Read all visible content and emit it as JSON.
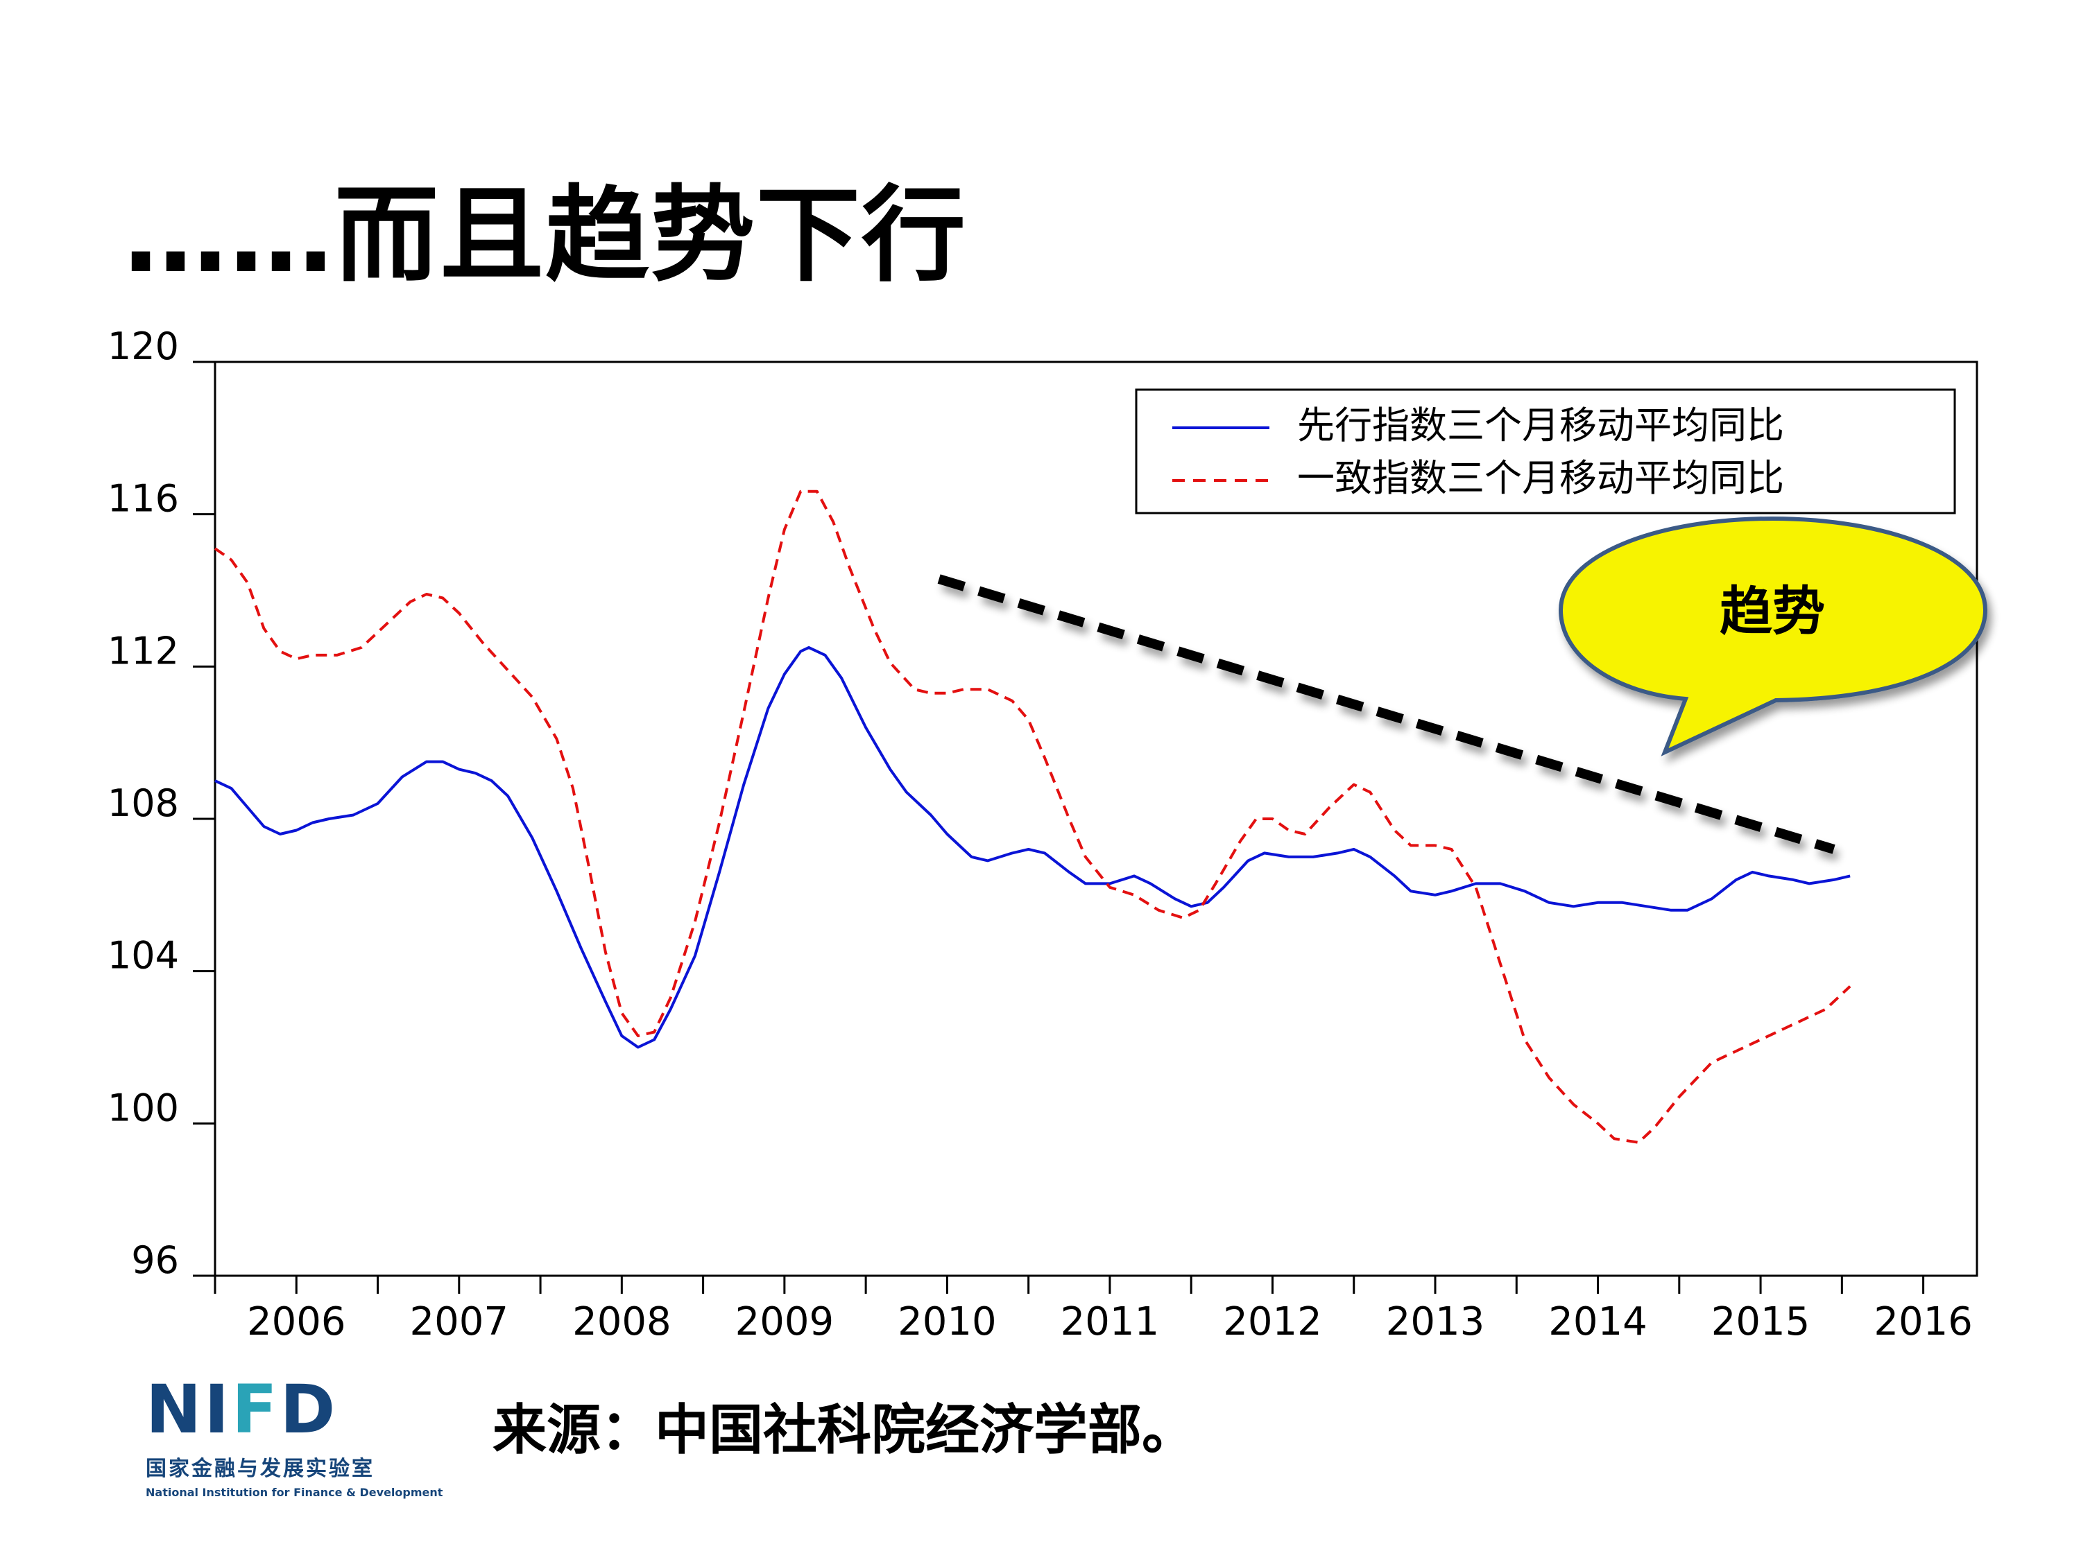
{
  "slide": {
    "title": "……而且趋势下行",
    "source": "来源：中国社科院经济学部。"
  },
  "logo": {
    "mark_left": "NI",
    "mark_accent": "F",
    "mark_right": "D",
    "name_cn": "国家金融与发展实验室",
    "name_en": "National Institution for Finance & Development"
  },
  "callout": {
    "text": "趋势",
    "fill_color": "#f7f300",
    "border_color": "#3b5a86"
  },
  "chart_data": {
    "type": "line",
    "title": "",
    "xlabel": "",
    "ylabel": "",
    "ylim": [
      96,
      120
    ],
    "yticks": [
      96,
      100,
      104,
      108,
      112,
      116,
      120
    ],
    "xlim": [
      2005.5,
      2016.33
    ],
    "xticks_labels": [
      "2006",
      "2007",
      "2008",
      "2009",
      "2010",
      "2011",
      "2012",
      "2013",
      "2014",
      "2015",
      "2016"
    ],
    "legend_position": "top-right",
    "grid": false,
    "series": [
      {
        "name": "先行指数三个月移动平均同比",
        "color": "#0a14d6",
        "style": "solid",
        "points": [
          [
            2005.5,
            109.0
          ],
          [
            2005.6,
            108.8
          ],
          [
            2005.7,
            108.3
          ],
          [
            2005.8,
            107.8
          ],
          [
            2005.9,
            107.6
          ],
          [
            2006.0,
            107.7
          ],
          [
            2006.1,
            107.9
          ],
          [
            2006.2,
            108.0
          ],
          [
            2006.35,
            108.1
          ],
          [
            2006.5,
            108.4
          ],
          [
            2006.65,
            109.1
          ],
          [
            2006.8,
            109.5
          ],
          [
            2006.9,
            109.5
          ],
          [
            2007.0,
            109.3
          ],
          [
            2007.1,
            109.2
          ],
          [
            2007.2,
            109.0
          ],
          [
            2007.3,
            108.6
          ],
          [
            2007.45,
            107.5
          ],
          [
            2007.6,
            106.1
          ],
          [
            2007.75,
            104.6
          ],
          [
            2007.9,
            103.2
          ],
          [
            2008.0,
            102.3
          ],
          [
            2008.1,
            102.0
          ],
          [
            2008.2,
            102.2
          ],
          [
            2008.3,
            103.0
          ],
          [
            2008.45,
            104.4
          ],
          [
            2008.6,
            106.6
          ],
          [
            2008.75,
            108.9
          ],
          [
            2008.9,
            110.9
          ],
          [
            2009.0,
            111.8
          ],
          [
            2009.1,
            112.4
          ],
          [
            2009.15,
            112.5
          ],
          [
            2009.25,
            112.3
          ],
          [
            2009.35,
            111.7
          ],
          [
            2009.5,
            110.4
          ],
          [
            2009.65,
            109.3
          ],
          [
            2009.75,
            108.7
          ],
          [
            2009.9,
            108.1
          ],
          [
            2010.0,
            107.6
          ],
          [
            2010.15,
            107.0
          ],
          [
            2010.25,
            106.9
          ],
          [
            2010.4,
            107.1
          ],
          [
            2010.5,
            107.2
          ],
          [
            2010.6,
            107.1
          ],
          [
            2010.75,
            106.6
          ],
          [
            2010.85,
            106.3
          ],
          [
            2011.0,
            106.3
          ],
          [
            2011.15,
            106.5
          ],
          [
            2011.25,
            106.3
          ],
          [
            2011.4,
            105.9
          ],
          [
            2011.5,
            105.7
          ],
          [
            2011.6,
            105.8
          ],
          [
            2011.7,
            106.2
          ],
          [
            2011.85,
            106.9
          ],
          [
            2011.95,
            107.1
          ],
          [
            2012.1,
            107.0
          ],
          [
            2012.25,
            107.0
          ],
          [
            2012.4,
            107.1
          ],
          [
            2012.5,
            107.2
          ],
          [
            2012.6,
            107.0
          ],
          [
            2012.75,
            106.5
          ],
          [
            2012.85,
            106.1
          ],
          [
            2013.0,
            106.0
          ],
          [
            2013.1,
            106.1
          ],
          [
            2013.25,
            106.3
          ],
          [
            2013.4,
            106.3
          ],
          [
            2013.55,
            106.1
          ],
          [
            2013.7,
            105.8
          ],
          [
            2013.85,
            105.7
          ],
          [
            2014.0,
            105.8
          ],
          [
            2014.15,
            105.8
          ],
          [
            2014.3,
            105.7
          ],
          [
            2014.45,
            105.6
          ],
          [
            2014.55,
            105.6
          ],
          [
            2014.7,
            105.9
          ],
          [
            2014.85,
            106.4
          ],
          [
            2014.95,
            106.6
          ],
          [
            2015.05,
            106.5
          ],
          [
            2015.2,
            106.4
          ],
          [
            2015.3,
            106.3
          ],
          [
            2015.45,
            106.4
          ],
          [
            2015.55,
            106.5
          ]
        ]
      },
      {
        "name": "一致指数三个月移动平均同比",
        "color": "#e31010",
        "style": "dashed",
        "points": [
          [
            2005.5,
            115.1
          ],
          [
            2005.6,
            114.8
          ],
          [
            2005.7,
            114.2
          ],
          [
            2005.8,
            113.0
          ],
          [
            2005.9,
            112.4
          ],
          [
            2006.0,
            112.2
          ],
          [
            2006.1,
            112.3
          ],
          [
            2006.25,
            112.3
          ],
          [
            2006.4,
            112.5
          ],
          [
            2006.55,
            113.1
          ],
          [
            2006.7,
            113.7
          ],
          [
            2006.8,
            113.9
          ],
          [
            2006.9,
            113.8
          ],
          [
            2007.0,
            113.4
          ],
          [
            2007.15,
            112.6
          ],
          [
            2007.3,
            111.9
          ],
          [
            2007.45,
            111.2
          ],
          [
            2007.6,
            110.1
          ],
          [
            2007.7,
            108.8
          ],
          [
            2007.8,
            106.7
          ],
          [
            2007.9,
            104.5
          ],
          [
            2008.0,
            102.9
          ],
          [
            2008.1,
            102.3
          ],
          [
            2008.2,
            102.4
          ],
          [
            2008.3,
            103.3
          ],
          [
            2008.45,
            105.3
          ],
          [
            2008.6,
            107.9
          ],
          [
            2008.75,
            110.8
          ],
          [
            2008.9,
            113.8
          ],
          [
            2009.0,
            115.6
          ],
          [
            2009.1,
            116.6
          ],
          [
            2009.2,
            116.6
          ],
          [
            2009.3,
            115.8
          ],
          [
            2009.4,
            114.6
          ],
          [
            2009.55,
            113.0
          ],
          [
            2009.65,
            112.1
          ],
          [
            2009.8,
            111.4
          ],
          [
            2009.9,
            111.3
          ],
          [
            2010.0,
            111.3
          ],
          [
            2010.1,
            111.4
          ],
          [
            2010.25,
            111.4
          ],
          [
            2010.4,
            111.1
          ],
          [
            2010.5,
            110.6
          ],
          [
            2010.6,
            109.6
          ],
          [
            2010.75,
            108.0
          ],
          [
            2010.85,
            107.0
          ],
          [
            2011.0,
            106.2
          ],
          [
            2011.15,
            106.0
          ],
          [
            2011.3,
            105.6
          ],
          [
            2011.45,
            105.4
          ],
          [
            2011.55,
            105.6
          ],
          [
            2011.65,
            106.3
          ],
          [
            2011.8,
            107.4
          ],
          [
            2011.9,
            108.0
          ],
          [
            2012.0,
            108.0
          ],
          [
            2012.1,
            107.7
          ],
          [
            2012.2,
            107.6
          ],
          [
            2012.35,
            108.3
          ],
          [
            2012.5,
            108.9
          ],
          [
            2012.6,
            108.7
          ],
          [
            2012.75,
            107.7
          ],
          [
            2012.85,
            107.3
          ],
          [
            2013.0,
            107.3
          ],
          [
            2013.1,
            107.2
          ],
          [
            2013.25,
            106.2
          ],
          [
            2013.4,
            104.2
          ],
          [
            2013.55,
            102.2
          ],
          [
            2013.7,
            101.2
          ],
          [
            2013.85,
            100.5
          ],
          [
            2014.0,
            100.0
          ],
          [
            2014.1,
            99.6
          ],
          [
            2014.25,
            99.5
          ],
          [
            2014.35,
            99.9
          ],
          [
            2014.5,
            100.7
          ],
          [
            2014.7,
            101.6
          ],
          [
            2014.85,
            101.9
          ],
          [
            2015.0,
            102.2
          ],
          [
            2015.15,
            102.5
          ],
          [
            2015.3,
            102.8
          ],
          [
            2015.4,
            103.0
          ],
          [
            2015.55,
            103.6
          ]
        ]
      }
    ],
    "annotations": [
      {
        "type": "trend-line",
        "style": "dashed",
        "color": "#000000",
        "from": [
          2009.95,
          114.3
        ],
        "to": [
          2015.45,
          107.2
        ]
      }
    ]
  }
}
